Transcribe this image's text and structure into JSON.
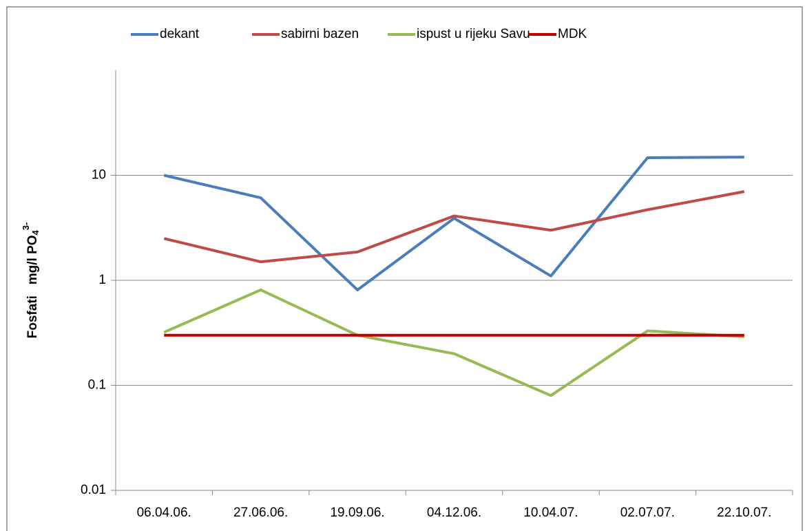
{
  "chart_data": {
    "type": "line",
    "ylabel": {
      "text": "Fosfati   mg/l PO",
      "sub": "4",
      "sup": "3-"
    },
    "categories": [
      "06.04.06.",
      "27.06.06.",
      "19.09.06.",
      "04.12.06.",
      "10.04.07.",
      "02.07.07.",
      "22.10.07."
    ],
    "series": [
      {
        "name": "dekant",
        "color": "#4a7ebb",
        "values": [
          10,
          6.1,
          0.81,
          3.9,
          1.1,
          14.7,
          14.9
        ]
      },
      {
        "name": "sabirni bazen",
        "color": "#be4b48",
        "values": [
          2.5,
          1.5,
          1.86,
          4.1,
          3.0,
          4.7,
          7.0
        ]
      },
      {
        "name": "ispust u rijeku Savu",
        "color": "#98b954",
        "values": [
          0.32,
          0.81,
          0.3,
          0.2,
          0.08,
          0.33,
          0.29
        ]
      },
      {
        "name": "MDK",
        "color": "#c00000",
        "values": [
          0.3,
          0.3,
          0.3,
          0.3,
          0.3,
          0.3,
          0.3
        ]
      }
    ],
    "ylim": [
      0.01,
      100
    ],
    "yticks": [
      0.01,
      0.1,
      1,
      10
    ],
    "log_y": true,
    "grid": true,
    "legend": "top"
  }
}
